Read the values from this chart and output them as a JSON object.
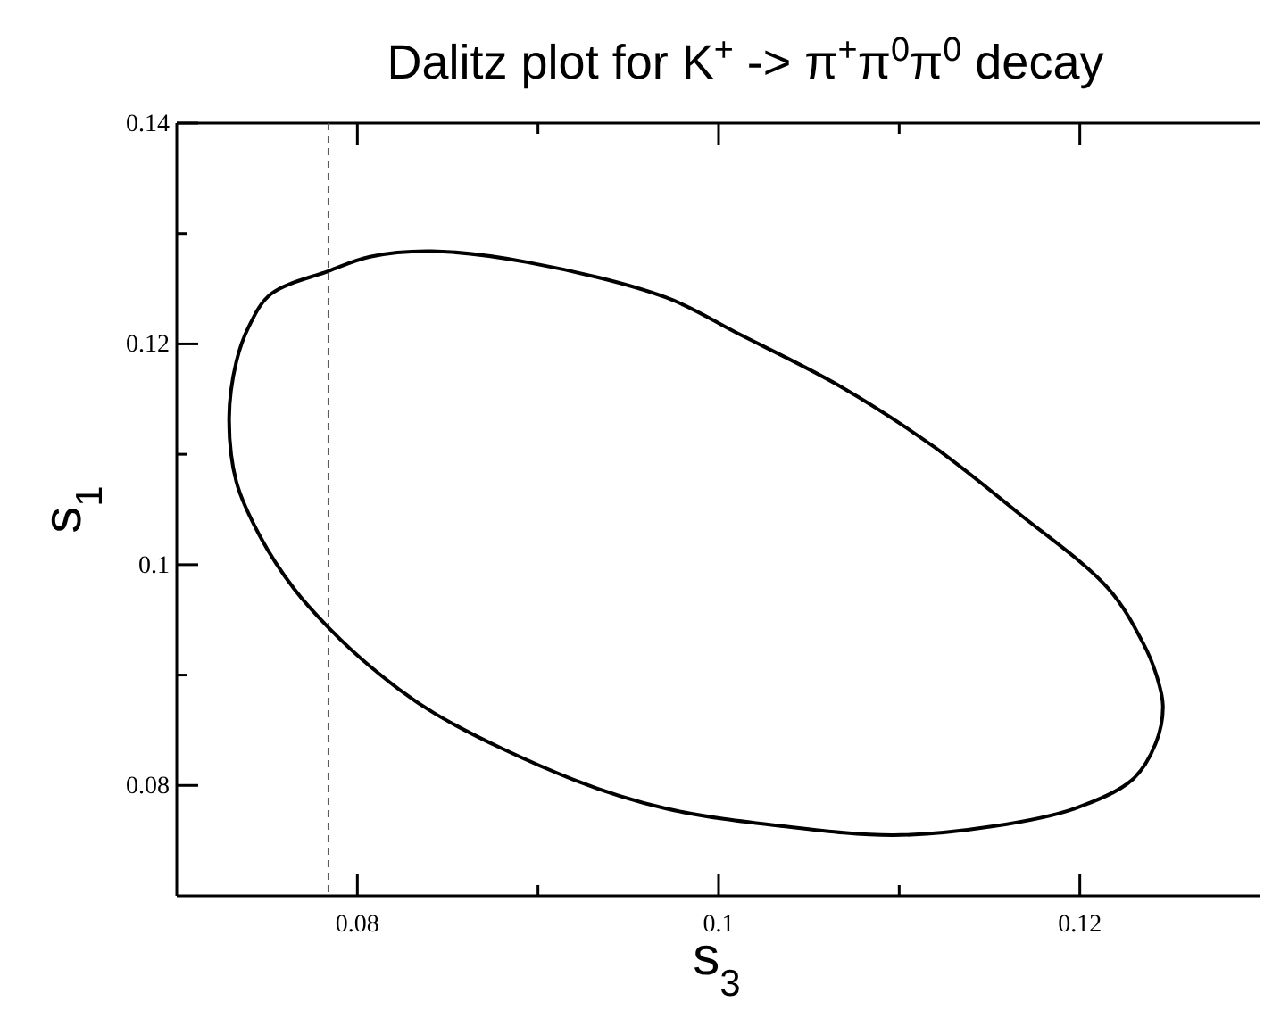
{
  "chart_data": {
    "type": "line",
    "title": "Dalitz plot for K$^{+}$ -> π$^{+}$π$^{0}$π$^{0}$ decay",
    "xlabel": "s$_{3}$",
    "ylabel": "s$_{1}$",
    "xlim": [
      0.07,
      0.13
    ],
    "ylim": [
      0.07,
      0.14
    ],
    "xticks": [
      0.08,
      {
        "value": 0.09,
        "label": null
      },
      0.1,
      {
        "value": 0.11,
        "label": null
      },
      0.12
    ],
    "yticks": [
      0.08,
      {
        "value": 0.09,
        "label": null
      },
      0.1,
      {
        "value": 0.11,
        "label": null
      },
      0.12,
      {
        "value": 0.13,
        "label": null
      },
      0.14
    ],
    "grid": false,
    "ref_lines": [
      {
        "axis": "x",
        "value": 0.0784,
        "color": "#555555",
        "line_style": "dashed"
      }
    ]
  }
}
